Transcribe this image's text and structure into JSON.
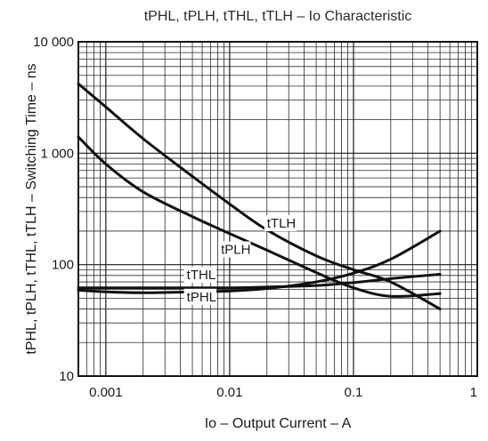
{
  "chart_data": {
    "type": "line",
    "title": "tPHL, tPLH, tTHL, tTLH – Io Characteristic",
    "xlabel": "Io – Output Current – A",
    "ylabel": "tPHL, tPLH, tTHL, tTLH – Switching Time – ns",
    "x_scale": "log",
    "y_scale": "log",
    "xlim": [
      0.0006,
      1
    ],
    "ylim": [
      10,
      10000
    ],
    "grid": true,
    "x_ticks": [
      {
        "value": 0.001,
        "label": "0.001"
      },
      {
        "value": 0.01,
        "label": "0.01"
      },
      {
        "value": 0.1,
        "label": "0.1"
      },
      {
        "value": 1,
        "label": "1"
      }
    ],
    "y_ticks": [
      {
        "value": 10,
        "label": "10"
      },
      {
        "value": 100,
        "label": "100"
      },
      {
        "value": 1000,
        "label": "1 000"
      },
      {
        "value": 10000,
        "label": "10 000"
      }
    ],
    "series": [
      {
        "name": "tTLH",
        "label": "tTLH",
        "x": [
          0.0006,
          0.001,
          0.002,
          0.005,
          0.01,
          0.02,
          0.05,
          0.1,
          0.2,
          0.5
        ],
        "y": [
          4200,
          2600,
          1350,
          620,
          350,
          205,
          120,
          90,
          70,
          40
        ]
      },
      {
        "name": "tPLH",
        "label": "tPLH",
        "x": [
          0.0006,
          0.001,
          0.002,
          0.005,
          0.01,
          0.02,
          0.05,
          0.1,
          0.2,
          0.5
        ],
        "y": [
          1400,
          800,
          450,
          270,
          190,
          135,
          85,
          62,
          52,
          55
        ]
      },
      {
        "name": "tTHL",
        "label": "tTHL",
        "x": [
          0.0006,
          0.001,
          0.002,
          0.005,
          0.01,
          0.02,
          0.05,
          0.1,
          0.2,
          0.5
        ],
        "y": [
          59,
          57,
          56,
          57,
          58,
          61,
          70,
          84,
          112,
          200
        ]
      },
      {
        "name": "tPHL",
        "label": "tPHL",
        "x": [
          0.0006,
          0.001,
          0.002,
          0.005,
          0.01,
          0.02,
          0.05,
          0.1,
          0.2,
          0.5
        ],
        "y": [
          62,
          62,
          62,
          62,
          62,
          63,
          65,
          69,
          75,
          82
        ]
      }
    ]
  }
}
